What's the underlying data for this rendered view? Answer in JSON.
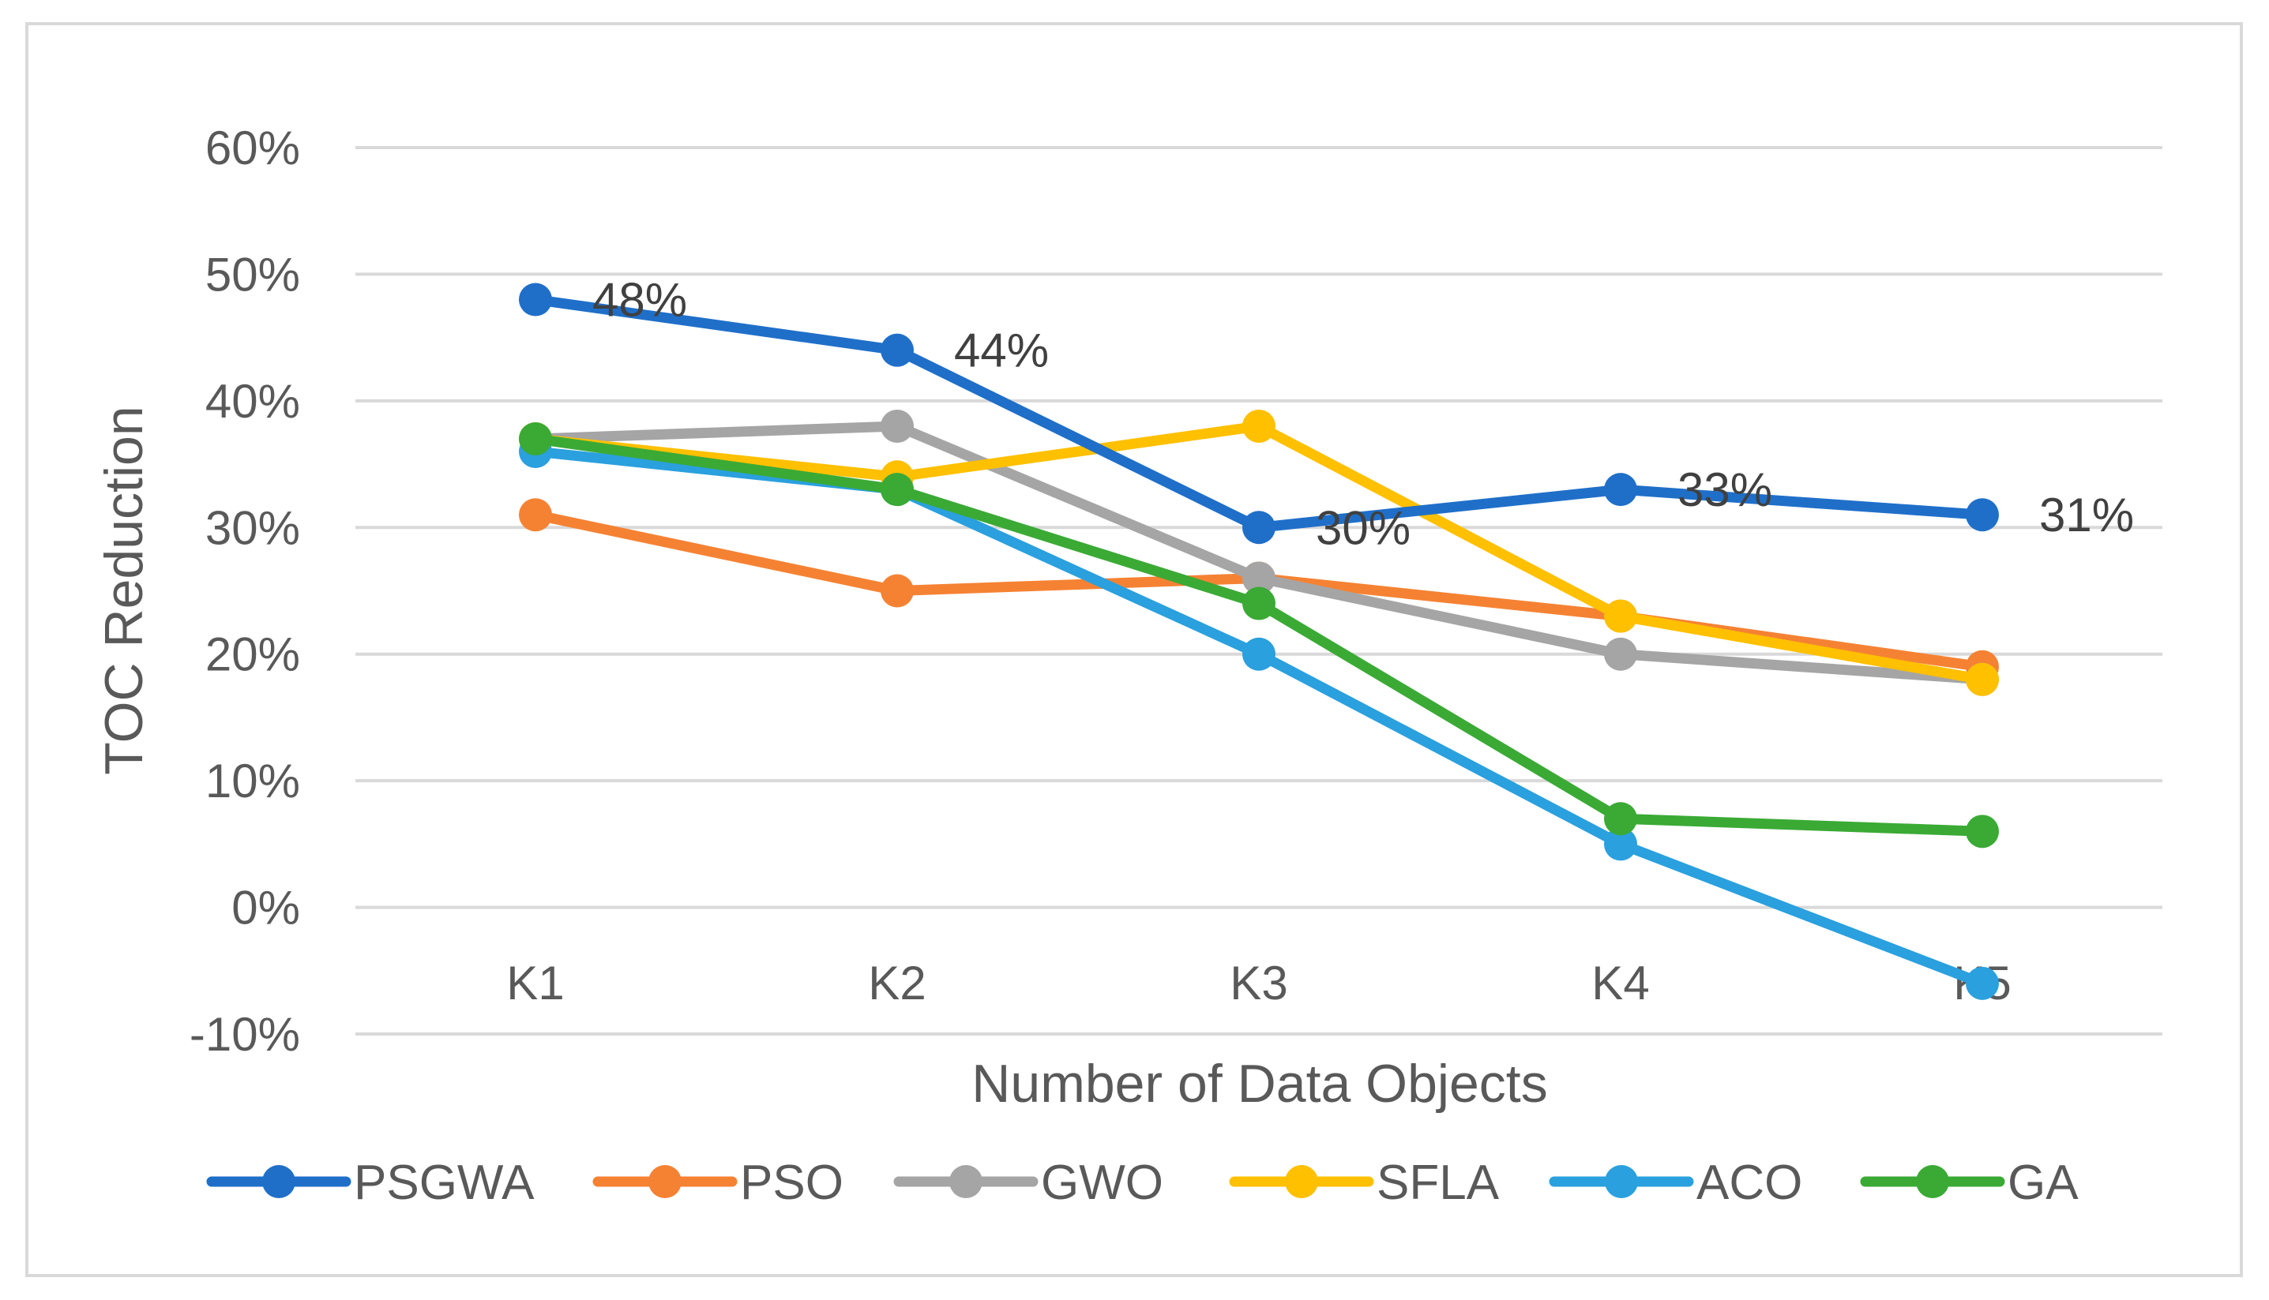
{
  "chart_data": {
    "type": "line",
    "title": "",
    "xlabel": "Number of Data Objects",
    "ylabel": "TOC Reduction",
    "categories": [
      "K1",
      "K2",
      "K3",
      "K4",
      "K5"
    ],
    "ylim": [
      -10,
      60
    ],
    "yticks": [
      -10,
      0,
      10,
      20,
      30,
      40,
      50,
      60
    ],
    "ytick_labels": [
      "-10%",
      "0%",
      "10%",
      "20%",
      "30%",
      "40%",
      "50%",
      "60%"
    ],
    "grid": true,
    "legend_position": "bottom",
    "series": [
      {
        "name": "PSGWA",
        "color": "#1F6FC9",
        "values": [
          48,
          44,
          30,
          33,
          31
        ],
        "data_labels": [
          "48%",
          "44%",
          "30%",
          "33%",
          "31%"
        ]
      },
      {
        "name": "PSO",
        "color": "#F58233",
        "values": [
          31,
          25,
          26,
          23,
          19
        ]
      },
      {
        "name": "GWO",
        "color": "#A5A5A5",
        "values": [
          37,
          38,
          26,
          20,
          18
        ]
      },
      {
        "name": "SFLA",
        "color": "#FFC000",
        "values": [
          37,
          34,
          38,
          23,
          18
        ]
      },
      {
        "name": "ACO",
        "color": "#2AA0DE",
        "values": [
          36,
          33,
          20,
          5,
          -6
        ]
      },
      {
        "name": "GA",
        "color": "#3AAA35",
        "values": [
          37,
          33,
          24,
          7,
          6
        ]
      }
    ],
    "draw_order": [
      "PSO",
      "GWO",
      "SFLA",
      "ACO",
      "GA",
      "PSGWA"
    ]
  }
}
